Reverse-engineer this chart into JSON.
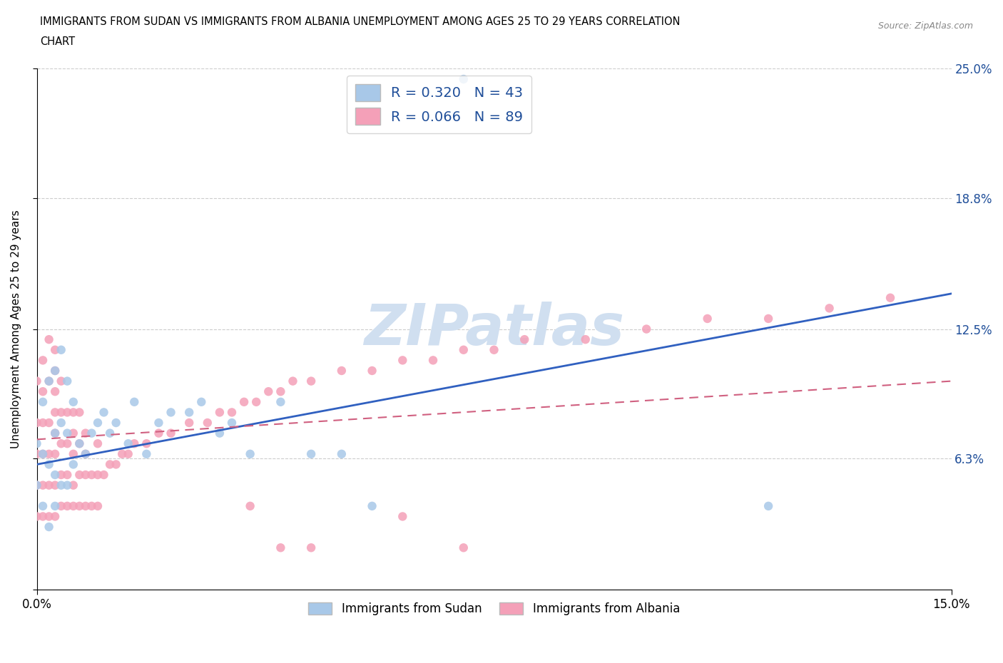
{
  "title_line1": "IMMIGRANTS FROM SUDAN VS IMMIGRANTS FROM ALBANIA UNEMPLOYMENT AMONG AGES 25 TO 29 YEARS CORRELATION",
  "title_line2": "CHART",
  "source": "Source: ZipAtlas.com",
  "ylabel": "Unemployment Among Ages 25 to 29 years",
  "xlim": [
    0.0,
    0.15
  ],
  "ylim": [
    0.0,
    0.25
  ],
  "ytick_values": [
    0.0,
    0.063,
    0.125,
    0.188,
    0.25
  ],
  "ytick_labels": [
    "",
    "6.3%",
    "12.5%",
    "18.8%",
    "25.0%"
  ],
  "sudan_color": "#a8c8e8",
  "albania_color": "#f4a0b8",
  "sudan_R": 0.32,
  "sudan_N": 43,
  "albania_R": 0.066,
  "albania_N": 89,
  "sudan_line_color": "#3060c0",
  "albania_line_color": "#d06080",
  "legend_text_color": "#1f4e99",
  "watermark": "ZIPatlas",
  "watermark_color": "#d0dff0",
  "sudan_line_x0": 0.0,
  "sudan_line_y0": 0.06,
  "sudan_line_x1": 0.15,
  "sudan_line_y1": 0.142,
  "albania_line_x0": 0.0,
  "albania_line_y0": 0.072,
  "albania_line_x1": 0.15,
  "albania_line_y1": 0.1,
  "sudan_scatter_x": [
    0.0,
    0.0,
    0.001,
    0.001,
    0.001,
    0.002,
    0.002,
    0.002,
    0.003,
    0.003,
    0.003,
    0.003,
    0.004,
    0.004,
    0.004,
    0.005,
    0.005,
    0.005,
    0.006,
    0.006,
    0.007,
    0.008,
    0.009,
    0.01,
    0.011,
    0.012,
    0.013,
    0.015,
    0.016,
    0.018,
    0.02,
    0.022,
    0.025,
    0.027,
    0.03,
    0.032,
    0.035,
    0.04,
    0.045,
    0.05,
    0.055,
    0.12,
    0.07
  ],
  "sudan_scatter_y": [
    0.05,
    0.07,
    0.04,
    0.065,
    0.09,
    0.03,
    0.06,
    0.1,
    0.04,
    0.055,
    0.075,
    0.105,
    0.05,
    0.08,
    0.115,
    0.05,
    0.075,
    0.1,
    0.06,
    0.09,
    0.07,
    0.065,
    0.075,
    0.08,
    0.085,
    0.075,
    0.08,
    0.07,
    0.09,
    0.065,
    0.08,
    0.085,
    0.085,
    0.09,
    0.075,
    0.08,
    0.065,
    0.09,
    0.065,
    0.065,
    0.04,
    0.04,
    0.245
  ],
  "albania_scatter_x": [
    0.0,
    0.0,
    0.0,
    0.0,
    0.0,
    0.001,
    0.001,
    0.001,
    0.001,
    0.001,
    0.001,
    0.002,
    0.002,
    0.002,
    0.002,
    0.002,
    0.002,
    0.003,
    0.003,
    0.003,
    0.003,
    0.003,
    0.003,
    0.003,
    0.003,
    0.004,
    0.004,
    0.004,
    0.004,
    0.004,
    0.005,
    0.005,
    0.005,
    0.005,
    0.006,
    0.006,
    0.006,
    0.006,
    0.006,
    0.007,
    0.007,
    0.007,
    0.007,
    0.008,
    0.008,
    0.008,
    0.008,
    0.009,
    0.009,
    0.01,
    0.01,
    0.01,
    0.011,
    0.012,
    0.013,
    0.014,
    0.015,
    0.016,
    0.018,
    0.02,
    0.022,
    0.025,
    0.028,
    0.03,
    0.032,
    0.034,
    0.036,
    0.038,
    0.04,
    0.042,
    0.045,
    0.05,
    0.055,
    0.06,
    0.065,
    0.07,
    0.075,
    0.08,
    0.09,
    0.1,
    0.11,
    0.12,
    0.13,
    0.14,
    0.06,
    0.07,
    0.035,
    0.04,
    0.045
  ],
  "albania_scatter_y": [
    0.035,
    0.05,
    0.065,
    0.08,
    0.1,
    0.035,
    0.05,
    0.065,
    0.08,
    0.095,
    0.11,
    0.035,
    0.05,
    0.065,
    0.08,
    0.1,
    0.12,
    0.035,
    0.05,
    0.065,
    0.075,
    0.085,
    0.095,
    0.105,
    0.115,
    0.04,
    0.055,
    0.07,
    0.085,
    0.1,
    0.04,
    0.055,
    0.07,
    0.085,
    0.04,
    0.05,
    0.065,
    0.075,
    0.085,
    0.04,
    0.055,
    0.07,
    0.085,
    0.04,
    0.055,
    0.065,
    0.075,
    0.04,
    0.055,
    0.04,
    0.055,
    0.07,
    0.055,
    0.06,
    0.06,
    0.065,
    0.065,
    0.07,
    0.07,
    0.075,
    0.075,
    0.08,
    0.08,
    0.085,
    0.085,
    0.09,
    0.09,
    0.095,
    0.095,
    0.1,
    0.1,
    0.105,
    0.105,
    0.11,
    0.11,
    0.115,
    0.115,
    0.12,
    0.12,
    0.125,
    0.13,
    0.13,
    0.135,
    0.14,
    0.035,
    0.02,
    0.04,
    0.02,
    0.02
  ]
}
